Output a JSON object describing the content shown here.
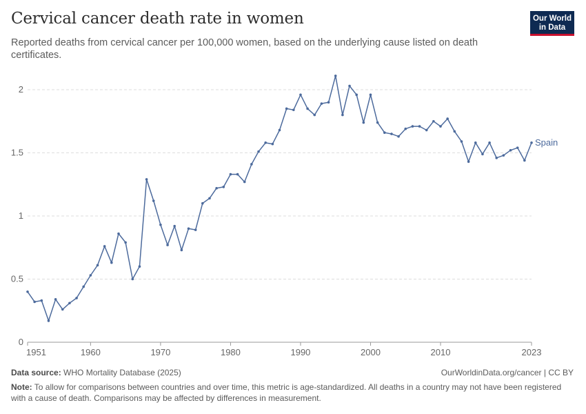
{
  "header": {
    "title": "Cervical cancer death rate in women",
    "subtitle": "Reported deaths from cervical cancer per 100,000 women, based on the underlying cause listed on death certificates.",
    "logo_line1": "Our World",
    "logo_line2": "in Data"
  },
  "footer": {
    "source_label": "Data source:",
    "source_text": "WHO Mortality Database (2025)",
    "url_text": "OurWorldinData.org/cancer | CC BY",
    "note_label": "Note:",
    "note_text": "To allow for comparisons between countries and over time, this metric is age-standardized. All deaths in a country may not have been registered with a cause of death. Comparisons may be affected by differences in measurement."
  },
  "colors": {
    "series": "#4c6a9c",
    "grid": "#dddddd",
    "axis": "#999999",
    "tick_text": "#666666"
  },
  "chart_data": {
    "type": "line",
    "title": "Cervical cancer death rate in women",
    "xlabel": "",
    "ylabel": "",
    "xlim": [
      1951,
      2023
    ],
    "ylim": [
      0,
      2
    ],
    "x_ticks": [
      1951,
      1960,
      1970,
      1980,
      1990,
      2000,
      2010,
      2023
    ],
    "y_ticks": [
      0,
      0.5,
      1,
      1.5,
      2
    ],
    "y_tick_labels": [
      "0",
      "0.5",
      "1",
      "1.5",
      "2"
    ],
    "grid": true,
    "series": [
      {
        "name": "Spain",
        "x": [
          1951,
          1952,
          1953,
          1954,
          1955,
          1956,
          1957,
          1958,
          1959,
          1960,
          1961,
          1962,
          1963,
          1964,
          1965,
          1966,
          1967,
          1968,
          1969,
          1970,
          1971,
          1972,
          1973,
          1974,
          1975,
          1976,
          1977,
          1978,
          1979,
          1980,
          1981,
          1982,
          1983,
          1984,
          1985,
          1986,
          1987,
          1988,
          1989,
          1990,
          1991,
          1992,
          1993,
          1994,
          1995,
          1996,
          1997,
          1998,
          1999,
          2000,
          2001,
          2002,
          2003,
          2004,
          2005,
          2006,
          2007,
          2008,
          2009,
          2010,
          2011,
          2012,
          2013,
          2014,
          2015,
          2016,
          2017,
          2018,
          2019,
          2020,
          2021,
          2022,
          2023
        ],
        "values": [
          0.4,
          0.32,
          0.33,
          0.17,
          0.34,
          0.26,
          0.31,
          0.35,
          0.44,
          0.53,
          0.61,
          0.76,
          0.63,
          0.86,
          0.79,
          0.5,
          0.6,
          1.29,
          1.12,
          0.93,
          0.77,
          0.92,
          0.73,
          0.9,
          0.89,
          1.1,
          1.14,
          1.22,
          1.23,
          1.33,
          1.33,
          1.27,
          1.41,
          1.51,
          1.58,
          1.57,
          1.68,
          1.85,
          1.84,
          1.96,
          1.85,
          1.8,
          1.89,
          1.9,
          2.11,
          1.8,
          2.03,
          1.96,
          1.74,
          1.96,
          1.74,
          1.66,
          1.65,
          1.63,
          1.69,
          1.71,
          1.71,
          1.68,
          1.75,
          1.71,
          1.77,
          1.67,
          1.59,
          1.43,
          1.58,
          1.49,
          1.58,
          1.46,
          1.48,
          1.52,
          1.54,
          1.44,
          1.58
        ]
      }
    ]
  }
}
